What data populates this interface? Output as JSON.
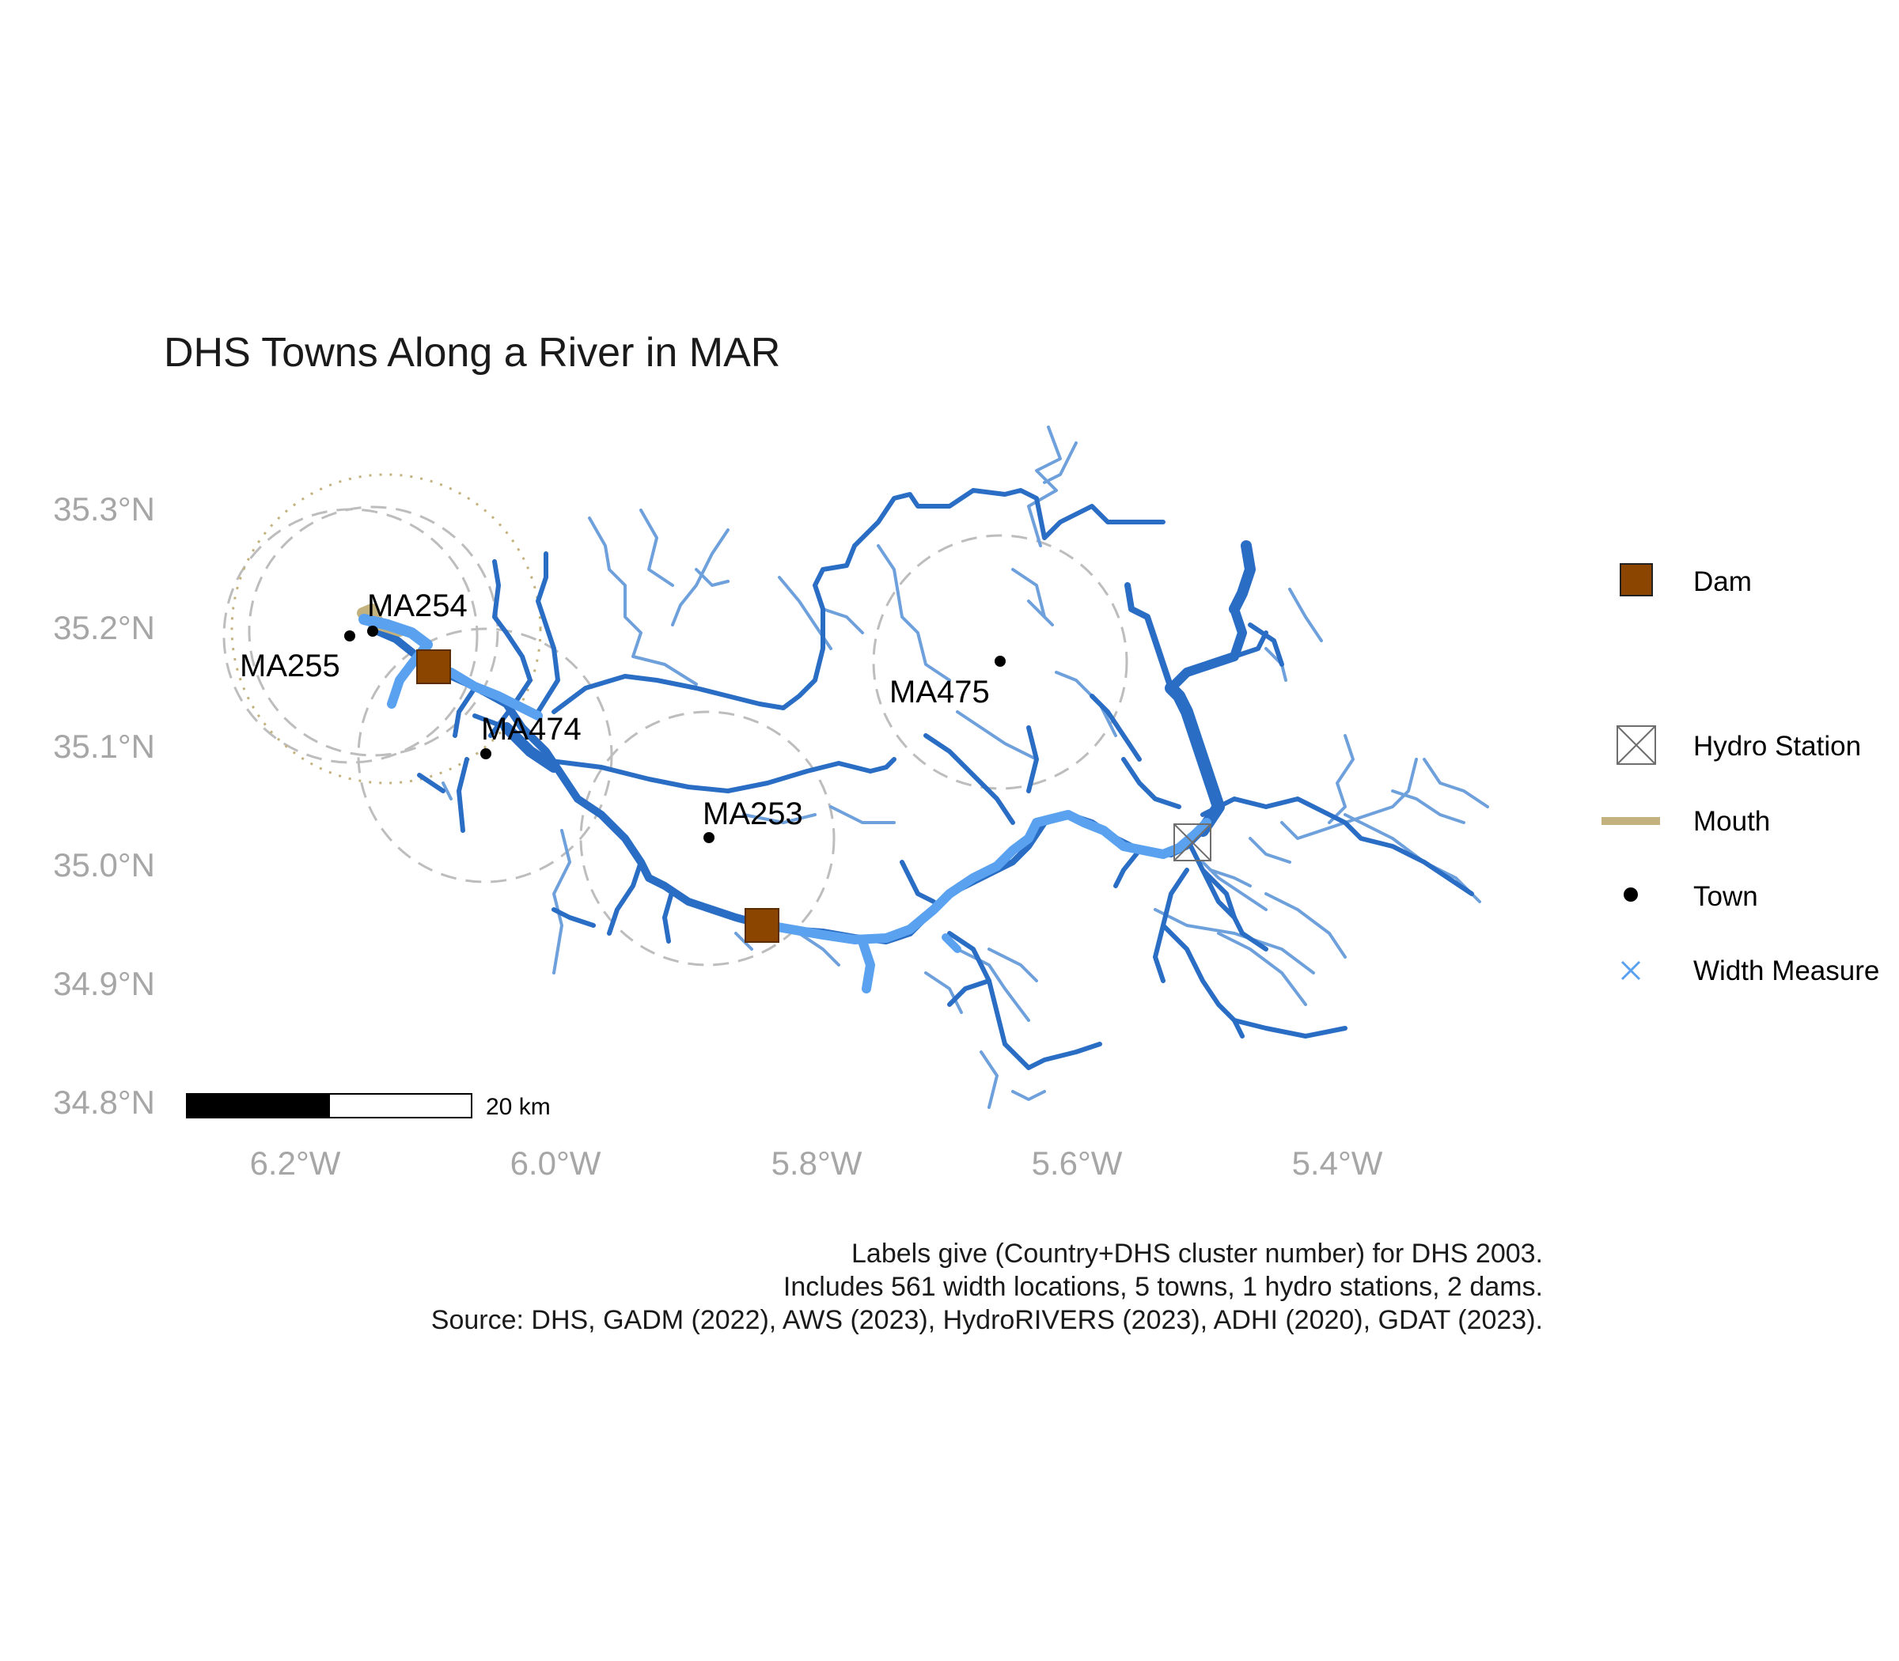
{
  "title": "DHS Towns Along a River in MAR",
  "axes": {
    "y_ticks": [
      "35.3°N",
      "35.2°N",
      "35.1°N",
      "35.0°N",
      "34.9°N",
      "34.8°N"
    ],
    "x_ticks": [
      "6.2°W",
      "6.0°W",
      "5.8°W",
      "5.6°W",
      "5.4°W"
    ]
  },
  "towns": [
    {
      "label": "MA254"
    },
    {
      "label": "MA255"
    },
    {
      "label": "MA474"
    },
    {
      "label": "MA253"
    },
    {
      "label": "MA475"
    }
  ],
  "legend": {
    "items": [
      {
        "label": "Dam",
        "icon": "brown-square",
        "color": "#8B4500"
      },
      {
        "label": "Hydro Station",
        "icon": "crossed-box",
        "color": "#6e6e6e"
      },
      {
        "label": "Mouth",
        "icon": "tan-line",
        "color": "#C4B27E"
      },
      {
        "label": "Town",
        "icon": "black-dot",
        "color": "#000000"
      },
      {
        "label": "Width Measure",
        "icon": "blue-x",
        "color": "#5aa2f0"
      }
    ]
  },
  "scale_bar": {
    "label": "20 km"
  },
  "caption": {
    "line1": "Labels give (Country+DHS cluster number) for DHS 2003.",
    "line2": "Includes 561 width locations, 5 towns, 1 hydro stations, 2 dams.",
    "line3": "Source: DHS, GADM (2022), AWS (2023), HydroRIVERS (2023), ADHI (2020), GDAT (2023)."
  },
  "colors": {
    "river_main": "#2a6dc4",
    "river_minor": "#6ea0dc",
    "width_measure": "#5aa2f0",
    "dam": "#8B4500",
    "mouth": "#C4B27E",
    "buffer": "#bdbdbd"
  }
}
